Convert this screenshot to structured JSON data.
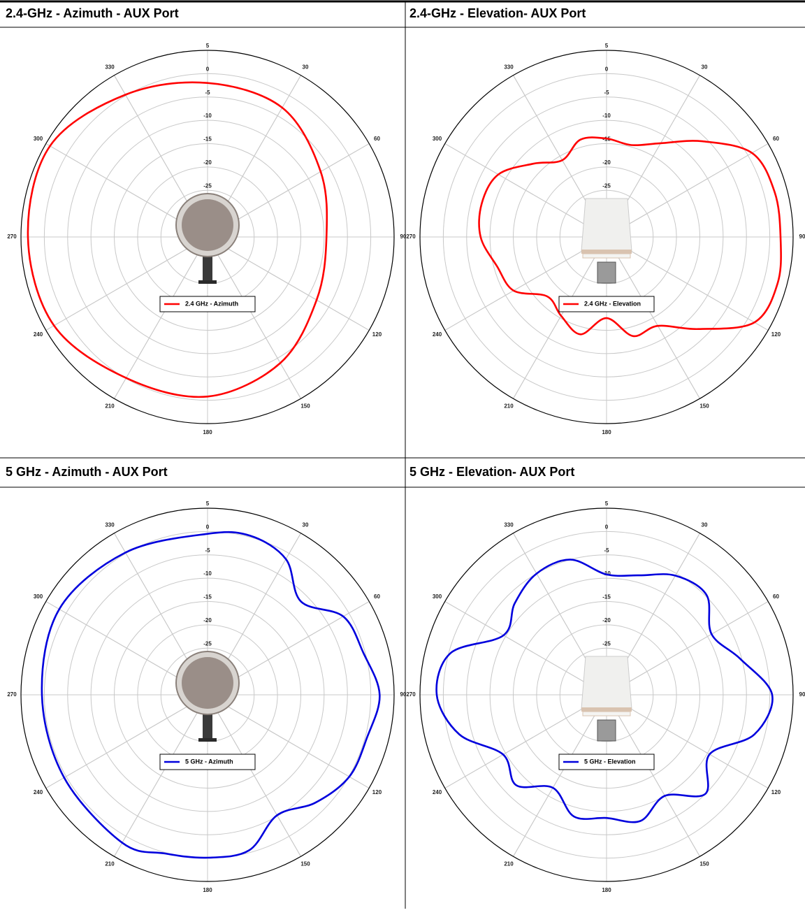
{
  "chart_data": [
    {
      "type": "polar",
      "title": "2.4-GHz - Azimuth - AUX Port",
      "theta": [
        0,
        30,
        60,
        90,
        120,
        150,
        180,
        210,
        240,
        270,
        300,
        330
      ],
      "rlim": [
        -35,
        5
      ],
      "rticks": [
        5,
        0,
        -5,
        -10,
        -15,
        -20,
        -25
      ],
      "thetaticks": [
        30,
        60,
        90,
        120,
        150,
        180,
        210,
        240,
        270,
        300,
        330
      ],
      "series": [
        {
          "name": "2.4 GHz - Azimuth",
          "color": "#ff0000",
          "values": [
            -2,
            -3,
            -7,
            -9.5,
            -8,
            -3.8,
            -0.8,
            -0.1,
            3,
            3.5,
            4,
            0.2
          ]
        }
      ]
    },
    {
      "type": "polar",
      "title": "2.4-GHz - Elevation- AUX Port",
      "theta": [
        0,
        15,
        30,
        45,
        60,
        75,
        90,
        105,
        120,
        135,
        150,
        165,
        180,
        195,
        210,
        225,
        240,
        255,
        270,
        285,
        300,
        315,
        330,
        345
      ],
      "rlim": [
        -35,
        5
      ],
      "rticks": [
        5,
        0,
        -5,
        -10,
        -15,
        -20,
        -25
      ],
      "thetaticks": [
        30,
        60,
        90,
        120,
        150,
        180,
        210,
        240,
        270,
        300,
        330
      ],
      "series": [
        {
          "name": "2.4 GHz - Elevation",
          "color": "#ff0000",
          "values": [
            -13.9,
            -14.6,
            -11.8,
            -6,
            1,
            2.3,
            2.3,
            3,
            1.6,
            -7.1,
            -13,
            -13,
            -17.6,
            -13.4,
            -15.5,
            -17,
            -12,
            -10.7,
            -8,
            -7.3,
            -8.2,
            -12.8,
            -16,
            -13.4
          ]
        }
      ]
    },
    {
      "type": "polar",
      "title": "5 GHz - Azimuth - AUX Port",
      "theta": [
        0,
        15,
        30,
        45,
        60,
        75,
        90,
        105,
        120,
        135,
        150,
        165,
        180,
        195,
        210,
        240,
        270,
        300,
        330
      ],
      "rlim": [
        -35,
        5
      ],
      "rticks": [
        5,
        0,
        -5,
        -10,
        -15,
        -20,
        -25
      ],
      "thetaticks": [
        30,
        60,
        90,
        120,
        150,
        180,
        210,
        240,
        270,
        300,
        330
      ],
      "series": [
        {
          "name": "5 GHz - Azimuth",
          "color": "#0000dd",
          "values": [
            -0.5,
            0.3,
            -1.4,
            -6.7,
            -1.4,
            -0.4,
            1.9,
            0.4,
            0.1,
            -2.3,
            -5.2,
            -0.5,
            -0.1,
            0.2,
            1.6,
            0.5,
            0.5,
            1.7,
            0.2
          ]
        }
      ]
    },
    {
      "type": "polar",
      "title": "5 GHz - Elevation- AUX Port",
      "theta": [
        0,
        15,
        30,
        45,
        60,
        75,
        90,
        105,
        120,
        135,
        150,
        165,
        180,
        195,
        210,
        225,
        240,
        255,
        270,
        285,
        300,
        315,
        330,
        345
      ],
      "rlim": [
        -35,
        5
      ],
      "rticks": [
        5,
        0,
        -5,
        -10,
        -15,
        -20,
        -25
      ],
      "thetaticks": [
        30,
        60,
        90,
        120,
        150,
        180,
        210,
        240,
        270,
        300,
        330
      ],
      "series": [
        {
          "name": "5 GHz - Elevation",
          "color": "#0000dd",
          "values": [
            -9.2,
            -8.5,
            -5.5,
            -4.7,
            -9,
            -5.3,
            0.5,
            -2.2,
            -9.5,
            -5,
            -10,
            -7,
            -8.6,
            -8,
            -12,
            -7.6,
            -9.4,
            -2.3,
            1.4,
            -0.4,
            -9.5,
            -7.2,
            -5,
            -5
          ]
        }
      ]
    }
  ]
}
